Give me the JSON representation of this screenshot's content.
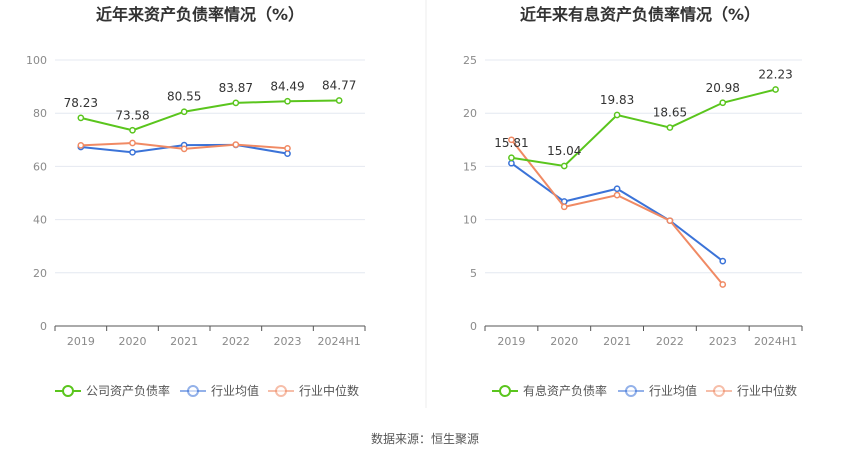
{
  "source_label": "数据来源：恒生聚源",
  "colors": {
    "company": "#5ac51d",
    "avg": "#3b73d8",
    "median": "#f08a64"
  },
  "chart_data": [
    {
      "type": "line",
      "title": "近年来资产负债率情况（%）",
      "categories": [
        "2019",
        "2020",
        "2021",
        "2022",
        "2023",
        "2024H1"
      ],
      "ylim": [
        0,
        100
      ],
      "yticks": [
        0,
        20,
        40,
        60,
        80,
        100
      ],
      "series": [
        {
          "name": "公司资产负债率",
          "color": "#5ac51d",
          "labels": true,
          "values": [
            78.23,
            73.58,
            80.55,
            83.87,
            84.49,
            84.77
          ]
        },
        {
          "name": "行业均值",
          "color": "#3b73d8",
          "labels": false,
          "values": [
            67.3,
            65.3,
            68.0,
            68.1,
            64.8,
            null
          ]
        },
        {
          "name": "行业中位数",
          "color": "#f08a64",
          "labels": false,
          "values": [
            67.9,
            68.8,
            66.6,
            68.2,
            66.8,
            null
          ]
        }
      ]
    },
    {
      "type": "line",
      "title": "近年来有息资产负债率情况（%）",
      "categories": [
        "2019",
        "2020",
        "2021",
        "2022",
        "2023",
        "2024H1"
      ],
      "ylim": [
        0,
        25
      ],
      "yticks": [
        0,
        5,
        10,
        15,
        20,
        25
      ],
      "series": [
        {
          "name": "有息资产负债率",
          "color": "#5ac51d",
          "labels": true,
          "values": [
            15.81,
            15.04,
            19.83,
            18.65,
            20.98,
            22.23
          ]
        },
        {
          "name": "行业均值",
          "color": "#3b73d8",
          "labels": false,
          "values": [
            15.3,
            11.7,
            12.9,
            9.9,
            6.1,
            null
          ]
        },
        {
          "name": "行业中位数",
          "color": "#f08a64",
          "labels": false,
          "values": [
            17.5,
            11.2,
            12.3,
            9.9,
            3.9,
            null
          ]
        }
      ]
    }
  ]
}
